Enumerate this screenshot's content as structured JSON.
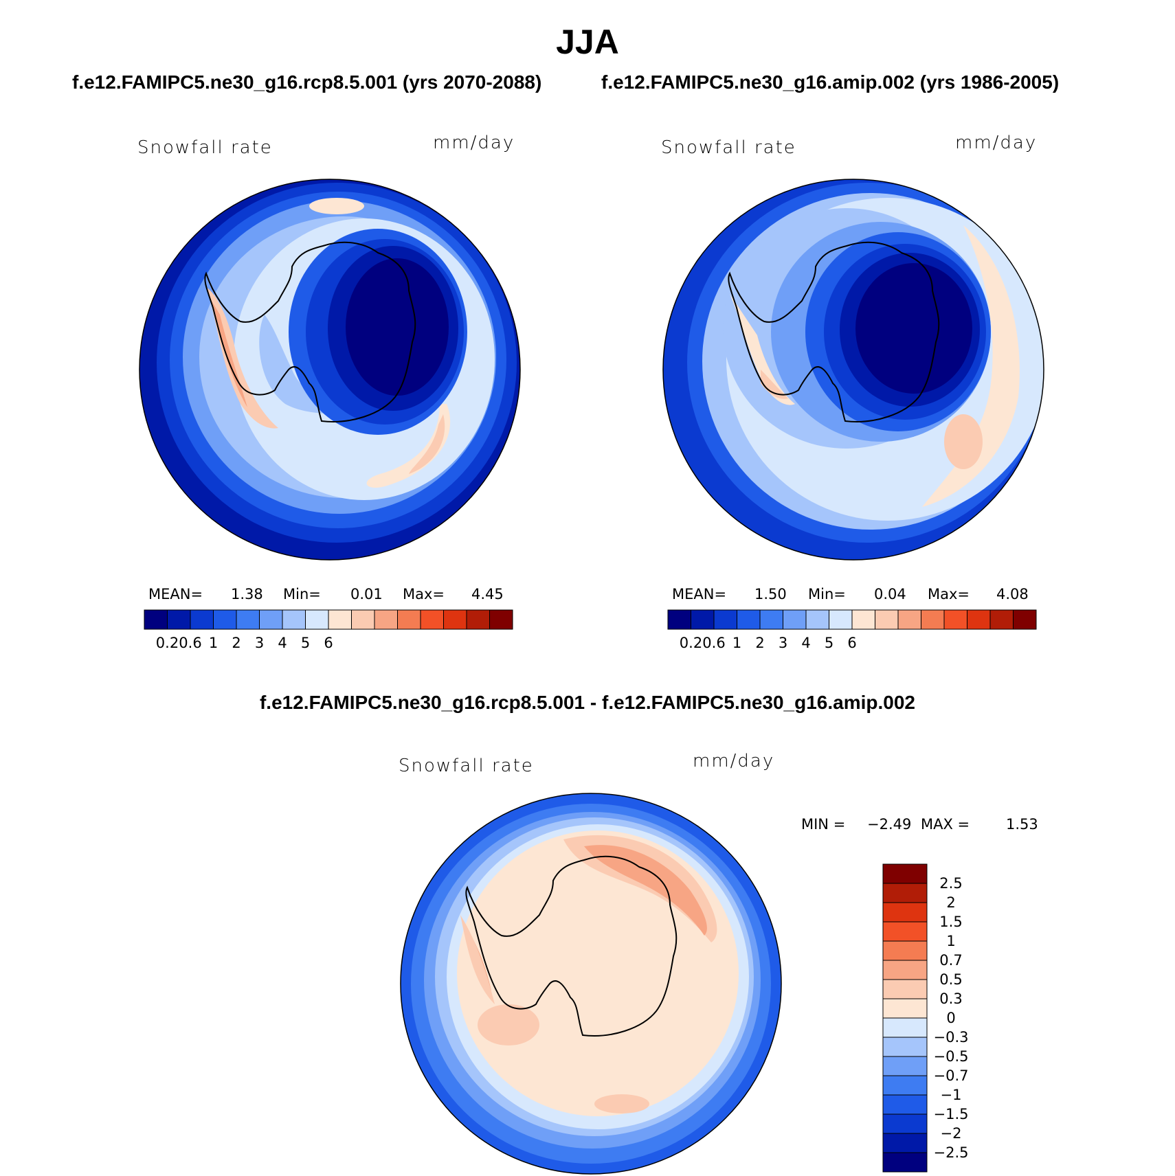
{
  "header": {
    "season": "JJA",
    "left_case": "f.e12.FAMIPC5.ne30_g16.rcp8.5.001 (yrs 2070-2088)",
    "right_case": "f.e12.FAMIPC5.ne30_g16.amip.002 (yrs 1986-2005)",
    "diff_title": "f.e12.FAMIPC5.ne30_g16.rcp8.5.001 - f.e12.FAMIPC5.ne30_g16.amip.002"
  },
  "panels": [
    {
      "id": "rcp85",
      "variable": "Snowfall rate",
      "units": "mm/day",
      "stats": {
        "mean_label": "MEAN=",
        "mean": "1.38",
        "min_label": "Min=",
        "min": "0.01",
        "max_label": "Max=",
        "max": "4.45"
      }
    },
    {
      "id": "amip",
      "variable": "Snowfall rate",
      "units": "mm/day",
      "stats": {
        "mean_label": "MEAN=",
        "mean": "1.50",
        "min_label": "Min=",
        "min": "0.04",
        "max_label": "Max=",
        "max": "4.08"
      }
    },
    {
      "id": "diff",
      "variable": "Snowfall rate",
      "units": "mm/day",
      "stats": {
        "min_label": "MIN =",
        "min": "−2.49",
        "max_label": "MAX =",
        "max": "1.53"
      }
    }
  ],
  "colorbars": {
    "absolute": {
      "colors": [
        "#00007f",
        "#0019a8",
        "#0b3ad0",
        "#1f5be8",
        "#3e7cf2",
        "#6f9ff7",
        "#a5c5fb",
        "#d7e8fd",
        "#fde6d3",
        "#fbcbb2",
        "#f7a584",
        "#f47c52",
        "#f25127",
        "#de3410",
        "#b11d07",
        "#7f0000"
      ],
      "ticks": [
        "0.2",
        "0.6",
        "1",
        "2",
        "3",
        "4",
        "5",
        "6"
      ]
    },
    "difference": {
      "colors": [
        "#00007f",
        "#0019a8",
        "#0b3ad0",
        "#1f5be8",
        "#3e7cf2",
        "#6f9ff7",
        "#a5c5fb",
        "#d7e8fd",
        "#fde6d3",
        "#fbcbb2",
        "#f7a584",
        "#f47c52",
        "#f25127",
        "#de3410",
        "#b11d07",
        "#7f0000"
      ],
      "ticks": [
        "−2.5",
        "−2",
        "−1.5",
        "−1",
        "−0.7",
        "−0.5",
        "−0.3",
        "0",
        "0.3",
        "0.5",
        "0.7",
        "1",
        "1.5",
        "2",
        "2.5"
      ]
    }
  }
}
